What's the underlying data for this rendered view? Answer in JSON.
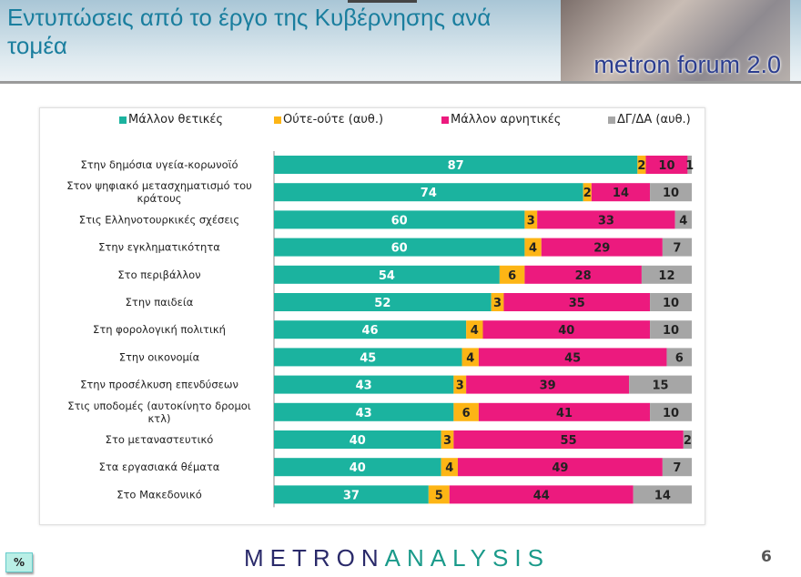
{
  "header": {
    "title": "Εντυπώσεις από το έργο της Κυβέρνησης ανά τομέα",
    "logo_text": "metron forum 2.0"
  },
  "footer": {
    "unit_badge": "%",
    "brand_part1": "METRON",
    "brand_part2": "ANALYSIS",
    "page_number": "6"
  },
  "chart_data": {
    "type": "bar",
    "orientation": "horizontal",
    "stacked": true,
    "xlim": [
      0,
      100
    ],
    "legend_position": "top",
    "categories": [
      "Στην δημόσια υγεία-κορωνοϊό",
      "Στον ψηφιακό μετασχηματισμό του κράτους",
      "Στις Ελληνοτουρκικές σχέσεις",
      "Στην εγκληματικότητα",
      "Στο περιβάλλον",
      "Στην παιδεία",
      "Στη φορολογική πολιτική",
      "Στην οικονομία",
      "Στην προσέλκυση επενδύσεων",
      "Στις υποδομές (αυτοκίνητο δρομοι κτλ)",
      "Στο μεταναστευτικό",
      "Στα εργασιακά θέματα",
      "Στο Μακεδονικό"
    ],
    "series": [
      {
        "name": "Μάλλον θετικές",
        "color": "#1bb39f",
        "label_color": "#ffffff",
        "values": [
          87,
          74,
          60,
          60,
          54,
          52,
          46,
          45,
          43,
          43,
          40,
          40,
          37
        ]
      },
      {
        "name": "Ούτε-ούτε  (αυθ.)",
        "color": "#fdb515",
        "label_color": "#222222",
        "values": [
          2,
          2,
          3,
          4,
          6,
          3,
          4,
          4,
          3,
          6,
          3,
          4,
          5
        ]
      },
      {
        "name": "Μάλλον αρνητικές",
        "color": "#ec1a7e",
        "label_color": "#222222",
        "values": [
          10,
          14,
          33,
          29,
          28,
          35,
          40,
          45,
          39,
          41,
          55,
          49,
          44
        ]
      },
      {
        "name": "ΔΓ/ΔΑ (αυθ.)",
        "color": "#a6a6a6",
        "label_color": "#222222",
        "values": [
          1,
          10,
          4,
          7,
          12,
          10,
          10,
          6,
          15,
          10,
          2,
          7,
          14
        ]
      }
    ]
  }
}
